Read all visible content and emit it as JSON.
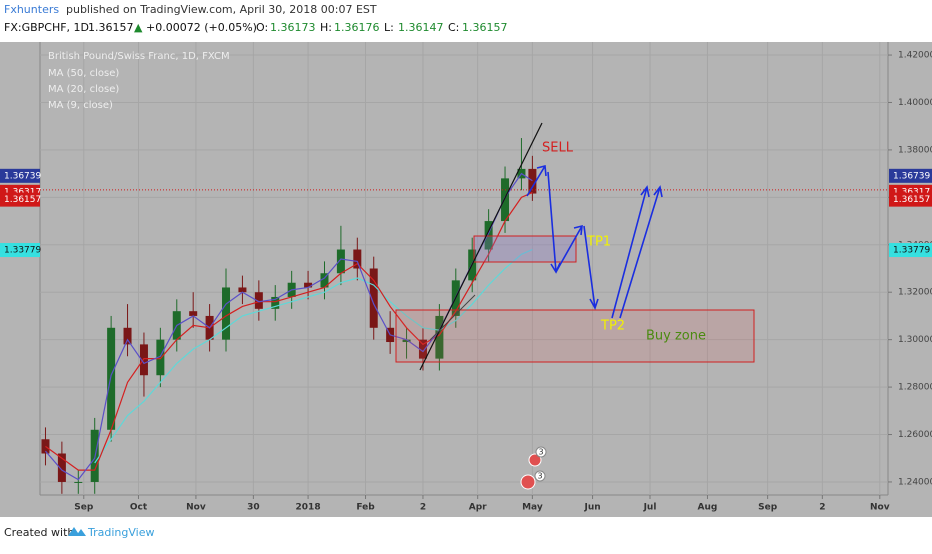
{
  "header": {
    "author": "Fxhunters",
    "published": "published on TradingView.com, April 30, 2018 00:07 EST",
    "symbol": "FX:GBPCHF, 1D",
    "last": "1.36157",
    "arrow": "▲",
    "change": "+0.00072 (+0.05%)",
    "ohlc": [
      {
        "label": "O:",
        "value": "1.36173"
      },
      {
        "label": "H:",
        "value": "1.36176"
      },
      {
        "label": "L:",
        "value": "1.36147"
      },
      {
        "label": "C:",
        "value": "1.36157"
      }
    ]
  },
  "chart_data": {
    "type": "candlestick",
    "title": "British Pound/Swiss Franc, 1D, FXCM",
    "x": [
      0,
      6,
      12,
      18,
      24,
      30,
      36,
      42,
      48,
      54,
      60,
      66,
      72,
      78,
      84,
      90,
      96,
      102,
      108,
      114,
      120,
      126,
      132,
      138,
      144,
      150,
      156,
      162,
      168,
      174,
      178
    ],
    "open": [
      1.258,
      1.252,
      1.24,
      1.24,
      1.262,
      1.305,
      1.298,
      1.285,
      1.3,
      1.312,
      1.31,
      1.3,
      1.322,
      1.32,
      1.313,
      1.318,
      1.324,
      1.322,
      1.328,
      1.338,
      1.33,
      1.305,
      1.299,
      1.3,
      1.292,
      1.31,
      1.325,
      1.338,
      1.35,
      1.368,
      1.372
    ],
    "high": [
      1.263,
      1.257,
      1.245,
      1.267,
      1.31,
      1.315,
      1.303,
      1.305,
      1.317,
      1.32,
      1.315,
      1.33,
      1.327,
      1.325,
      1.323,
      1.329,
      1.329,
      1.333,
      1.348,
      1.343,
      1.335,
      1.312,
      1.305,
      1.305,
      1.315,
      1.33,
      1.343,
      1.355,
      1.373,
      1.385,
      1.3775
    ],
    "low": [
      1.247,
      1.235,
      1.235,
      1.235,
      1.257,
      1.293,
      1.276,
      1.28,
      1.295,
      1.305,
      1.295,
      1.295,
      1.315,
      1.308,
      1.308,
      1.313,
      1.317,
      1.317,
      1.323,
      1.325,
      1.3,
      1.294,
      1.292,
      1.287,
      1.287,
      1.305,
      1.32,
      1.333,
      1.345,
      1.363,
      1.3585
    ],
    "close": [
      1.252,
      1.24,
      1.24,
      1.262,
      1.305,
      1.298,
      1.285,
      1.3,
      1.312,
      1.31,
      1.3,
      1.322,
      1.32,
      1.313,
      1.318,
      1.324,
      1.322,
      1.328,
      1.338,
      1.33,
      1.305,
      1.299,
      1.3,
      1.292,
      1.31,
      1.325,
      1.338,
      1.35,
      1.368,
      1.372,
      1.3616
    ],
    "up_color": "#1e6b2a",
    "down_color": "#7a1717",
    "series": [
      {
        "name": "MA (50, close)",
        "color": "#5fd8d8",
        "values": [
          null,
          null,
          null,
          1.248,
          1.258,
          1.268,
          1.274,
          1.282,
          1.29,
          1.296,
          1.3,
          1.305,
          1.31,
          1.312,
          1.314,
          1.316,
          1.318,
          1.32,
          1.324,
          1.326,
          1.323,
          1.316,
          1.31,
          1.305,
          1.304,
          1.308,
          1.315,
          1.323,
          1.33,
          1.336,
          1.338
        ]
      },
      {
        "name": "MA (20, close)",
        "color": "#d42020",
        "values": [
          1.255,
          1.25,
          1.245,
          1.245,
          1.262,
          1.282,
          1.292,
          1.292,
          1.3,
          1.306,
          1.305,
          1.31,
          1.314,
          1.316,
          1.316,
          1.318,
          1.32,
          1.322,
          1.328,
          1.332,
          1.325,
          1.314,
          1.305,
          1.298,
          1.302,
          1.312,
          1.324,
          1.336,
          1.35,
          1.36,
          1.362
        ]
      },
      {
        "name": "MA (9, close)",
        "color": "#5a4fc8",
        "values": [
          1.253,
          1.245,
          1.241,
          1.25,
          1.285,
          1.3,
          1.29,
          1.293,
          1.306,
          1.31,
          1.305,
          1.315,
          1.32,
          1.316,
          1.317,
          1.321,
          1.322,
          1.326,
          1.334,
          1.333,
          1.315,
          1.302,
          1.3,
          1.295,
          1.304,
          1.318,
          1.332,
          1.345,
          1.36,
          1.37,
          1.367
        ]
      }
    ],
    "xlim": [
      -2,
      308
    ],
    "ylim": [
      1.2345,
      1.4255
    ],
    "xticks": [
      {
        "value": 14,
        "label": "Sep"
      },
      {
        "value": 34,
        "label": "Oct"
      },
      {
        "value": 55,
        "label": "Nov"
      },
      {
        "value": 76,
        "label": "30"
      },
      {
        "value": 96,
        "label": "2018"
      },
      {
        "value": 117,
        "label": "Feb"
      },
      {
        "value": 138,
        "label": "2"
      },
      {
        "value": 158,
        "label": "Apr"
      },
      {
        "value": 178,
        "label": "May"
      },
      {
        "value": 200,
        "label": "Jun"
      },
      {
        "value": 221,
        "label": "Jul"
      },
      {
        "value": 242,
        "label": "Aug"
      },
      {
        "value": 264,
        "label": "Sep"
      },
      {
        "value": 284,
        "label": "2"
      },
      {
        "value": 305,
        "label": "Nov"
      }
    ],
    "yticks": [
      {
        "value": 1.42,
        "label": "1.42000"
      },
      {
        "value": 1.4,
        "label": "1.40000"
      },
      {
        "value": 1.38,
        "label": "1.38000"
      },
      {
        "value": 1.36,
        "label": "1.36000"
      },
      {
        "value": 1.34,
        "label": "1.34000"
      },
      {
        "value": 1.32,
        "label": "1.32000"
      },
      {
        "value": 1.3,
        "label": "1.30000"
      },
      {
        "value": 1.28,
        "label": "1.28000"
      },
      {
        "value": 1.26,
        "label": "1.26000"
      },
      {
        "value": 1.24,
        "label": "1.24000"
      }
    ],
    "price_tags": [
      {
        "value": 1.36739,
        "color": "#2a3a9a"
      },
      {
        "value": 1.36317,
        "color": "#d01818"
      },
      {
        "value": 1.36157,
        "color": "#d01818"
      },
      {
        "value": 1.33779,
        "color": "#36e0e0"
      }
    ],
    "price_line": 1.36317,
    "annotations": [
      "SELL",
      "TP1",
      "TP2",
      "Buy zone"
    ],
    "event_badges": [
      "3",
      "3"
    ]
  },
  "footer": {
    "created": "Created with",
    "brand": "TradingView"
  }
}
